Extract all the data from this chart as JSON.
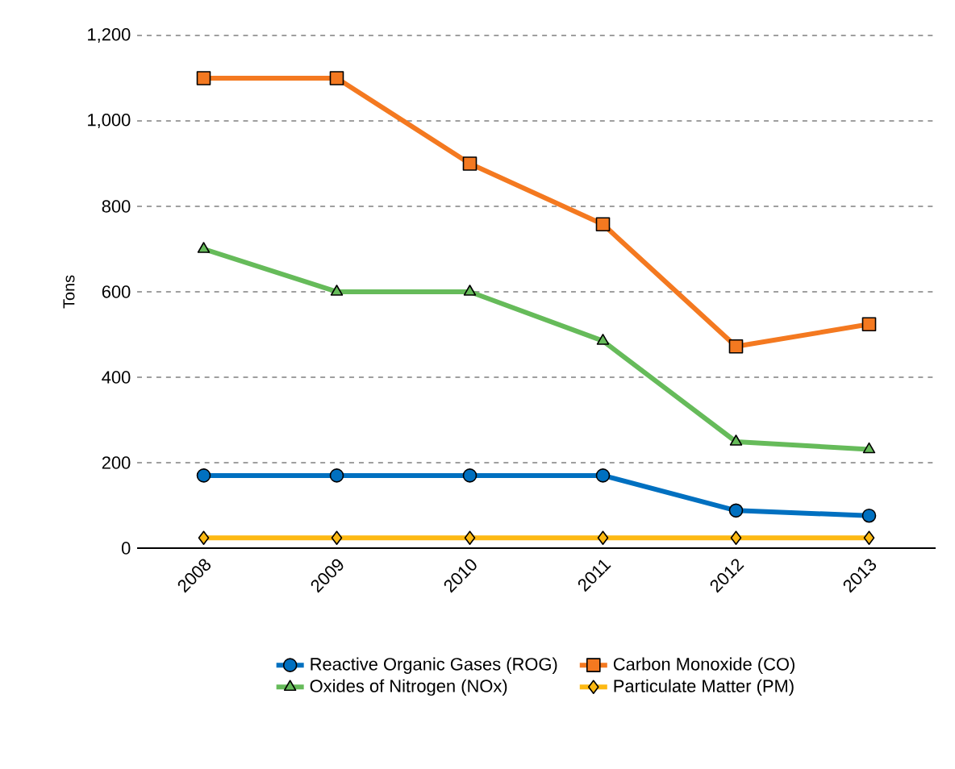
{
  "chart_data": {
    "type": "line",
    "ylabel": "Tons",
    "categories": [
      "2008",
      "2009",
      "2010",
      "2011",
      "2012",
      "2013"
    ],
    "series": [
      {
        "name": "Reactive Organic Gases (ROG)",
        "color": "#0070c0",
        "marker": "circle",
        "values": [
          170,
          170,
          170,
          170,
          88,
          76
        ]
      },
      {
        "name": "Carbon Monoxide (CO)",
        "color": "#f47920",
        "marker": "square",
        "values": [
          1100,
          1100,
          900,
          758,
          472,
          524
        ]
      },
      {
        "name": "Oxides of Nitrogen (NOx)",
        "color": "#66bb5a",
        "marker": "triangle",
        "values": [
          700,
          600,
          600,
          485,
          249,
          231
        ]
      },
      {
        "name": "Particulate Matter (PM)",
        "color": "#fdb913",
        "marker": "diamond",
        "values": [
          24,
          24,
          24,
          24,
          24,
          24
        ]
      }
    ],
    "ylim": [
      0,
      1200
    ],
    "yticks": [
      0,
      200,
      400,
      600,
      800,
      {
        "value": 1000,
        "label": "1,000"
      },
      {
        "value": 1200,
        "label": "1,200"
      }
    ],
    "grid": "y",
    "legend": "bottom",
    "line_style": "solid"
  }
}
